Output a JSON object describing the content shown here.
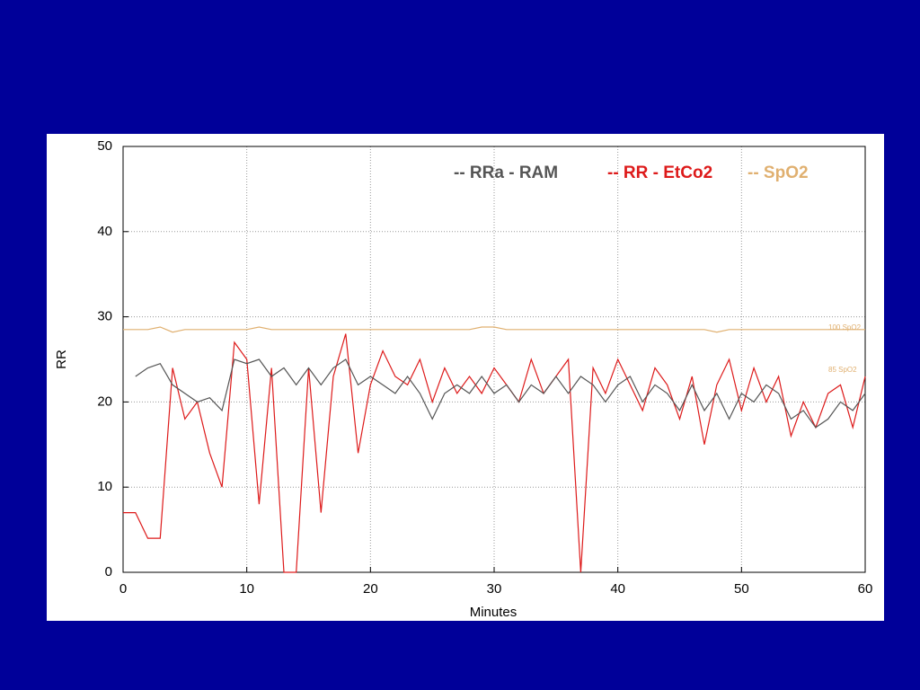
{
  "chart_data": {
    "type": "line",
    "x_label": "Minutes",
    "y_label": "RR",
    "xlim": [
      0,
      60
    ],
    "xticks": [
      0,
      10,
      20,
      30,
      40,
      50,
      60
    ],
    "ylim": [
      0,
      50
    ],
    "yticks": [
      0,
      10,
      20,
      30,
      40,
      50
    ],
    "grid": true,
    "legend": "top-right",
    "annotations": [
      "100 SpO2",
      "85 SpO2"
    ],
    "x": [
      0,
      1,
      2,
      3,
      4,
      5,
      6,
      7,
      8,
      9,
      10,
      11,
      12,
      13,
      14,
      15,
      16,
      17,
      18,
      19,
      20,
      21,
      22,
      23,
      24,
      25,
      26,
      27,
      28,
      29,
      30,
      31,
      32,
      33,
      34,
      35,
      36,
      37,
      38,
      39,
      40,
      41,
      42,
      43,
      44,
      45,
      46,
      47,
      48,
      49,
      50,
      51,
      52,
      53,
      54,
      55,
      56,
      57,
      58,
      59,
      60
    ],
    "series": [
      {
        "name": "-- RRa - RAM",
        "color": "#555555",
        "values": [
          null,
          23,
          24,
          24.5,
          22,
          21,
          20,
          20.5,
          19,
          25,
          24.5,
          25,
          23,
          24,
          22,
          24,
          22,
          24,
          25,
          22,
          23,
          22,
          21,
          23,
          21,
          18,
          21,
          22,
          21,
          23,
          21,
          22,
          20,
          22,
          21,
          23,
          21,
          23,
          22,
          20,
          22,
          23,
          20,
          22,
          21,
          19,
          22,
          19,
          21,
          18,
          21,
          20,
          22,
          21,
          18,
          19,
          17,
          18,
          20,
          19,
          21
        ]
      },
      {
        "name": "-- RR - EtCo2",
        "color": "#dd1a1a",
        "values": [
          7,
          7,
          4,
          4,
          24,
          18,
          20,
          14,
          10,
          27,
          25,
          8,
          24,
          0,
          0,
          24,
          7,
          23,
          28,
          14,
          22,
          26,
          23,
          22,
          25,
          20,
          24,
          21,
          23,
          21,
          24,
          22,
          20,
          25,
          21,
          23,
          25,
          0,
          24,
          21,
          25,
          22,
          19,
          24,
          22,
          18,
          23,
          15,
          22,
          25,
          19,
          24,
          20,
          23,
          16,
          20,
          17,
          21,
          22,
          17,
          23
        ]
      },
      {
        "name": "-- SpO2",
        "color": "#e0b070",
        "values": [
          28.5,
          28.5,
          28.5,
          28.8,
          28.2,
          28.5,
          28.5,
          28.5,
          28.5,
          28.5,
          28.5,
          28.8,
          28.5,
          28.5,
          28.5,
          28.5,
          28.5,
          28.5,
          28.5,
          28.5,
          28.5,
          28.5,
          28.5,
          28.5,
          28.5,
          28.5,
          28.5,
          28.5,
          28.5,
          28.8,
          28.8,
          28.5,
          28.5,
          28.5,
          28.5,
          28.5,
          28.5,
          28.5,
          28.5,
          28.5,
          28.5,
          28.5,
          28.5,
          28.5,
          28.5,
          28.5,
          28.5,
          28.5,
          28.2,
          28.5,
          28.5,
          28.5,
          28.5,
          28.5,
          28.5,
          28.5,
          28.5,
          28.5,
          28.5,
          28.5,
          28.5
        ]
      }
    ]
  }
}
